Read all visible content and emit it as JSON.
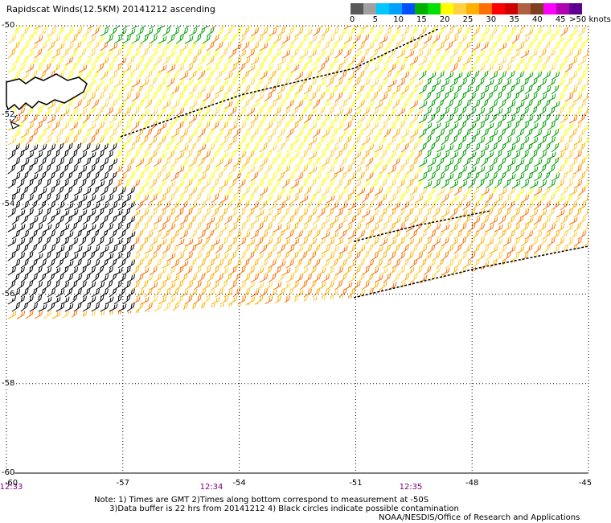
{
  "title": "Rapidscat Winds(12.5KM) 20141212 ascending",
  "colorbar": {
    "colors": [
      "#5a5a5a",
      "#a0a0a0",
      "#00c8ff",
      "#00a0ff",
      "#0050ff",
      "#00b000",
      "#00e000",
      "#ffff00",
      "#ffd040",
      "#ffb000",
      "#ff7000",
      "#ff0000",
      "#d00000",
      "#b06040",
      "#804020",
      "#ff00ff",
      "#b000b0",
      "#600090"
    ],
    "labels": [
      "0",
      "5",
      "10",
      "15",
      "20",
      "25",
      "30",
      "35",
      "40",
      "45",
      ">50 knots"
    ]
  },
  "lat_labels": [
    "-50",
    "-52",
    "-54",
    "-56",
    "-58",
    "-60"
  ],
  "lon_labels": [
    "-57",
    "-54",
    "-51",
    "-48",
    "-45"
  ],
  "corner_label": "-60",
  "time_labels": [
    "12:33",
    "12:34",
    "12:35"
  ],
  "notes": "Note: 1) Times are GMT 2)Times along bottom correspond to measurement at -50S\n      3)Data buffer is 22 hrs from 20141212 4) Black circles indicate possible contamination",
  "credit": "NOAA/NESDIS/Office of Research and Applications",
  "map_extent": {
    "lon_min": -60,
    "lon_max": -45,
    "lat_min": -60,
    "lat_max": -50
  },
  "swath_colors": [
    "#ffff00",
    "#ffd040",
    "#ffb000",
    "#ff7000",
    "#ff0000",
    "#00a000",
    "#000000",
    "#e04080"
  ]
}
